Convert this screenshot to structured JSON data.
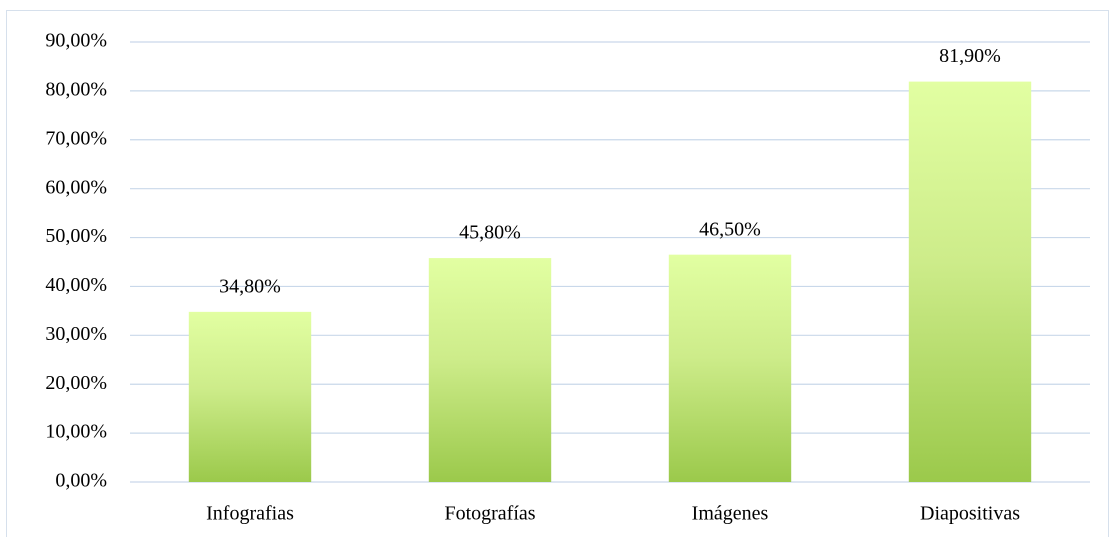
{
  "chart_data": {
    "type": "bar",
    "categories": [
      "Infografias",
      "Fotografías",
      "Imágenes",
      "Diapositivas"
    ],
    "values": [
      34.8,
      45.8,
      46.5,
      81.9
    ],
    "value_labels": [
      "34,80%",
      "45,80%",
      "46,50%",
      "81,90%"
    ],
    "color": "#9bc94b",
    "ylim": [
      0,
      90
    ],
    "yticks": [
      {
        "value": 0,
        "label": "0,00%"
      },
      {
        "value": 10,
        "label": "10,00%"
      },
      {
        "value": 20,
        "label": "20,00%"
      },
      {
        "value": 30,
        "label": "30,00%"
      },
      {
        "value": 40,
        "label": "40,00%"
      },
      {
        "value": 50,
        "label": "50,00%"
      },
      {
        "value": 60,
        "label": "60,00%"
      },
      {
        "value": 70,
        "label": "70,00%"
      },
      {
        "value": 80,
        "label": "80,00%"
      },
      {
        "value": 90,
        "label": "90,00%"
      }
    ],
    "grid": true
  }
}
